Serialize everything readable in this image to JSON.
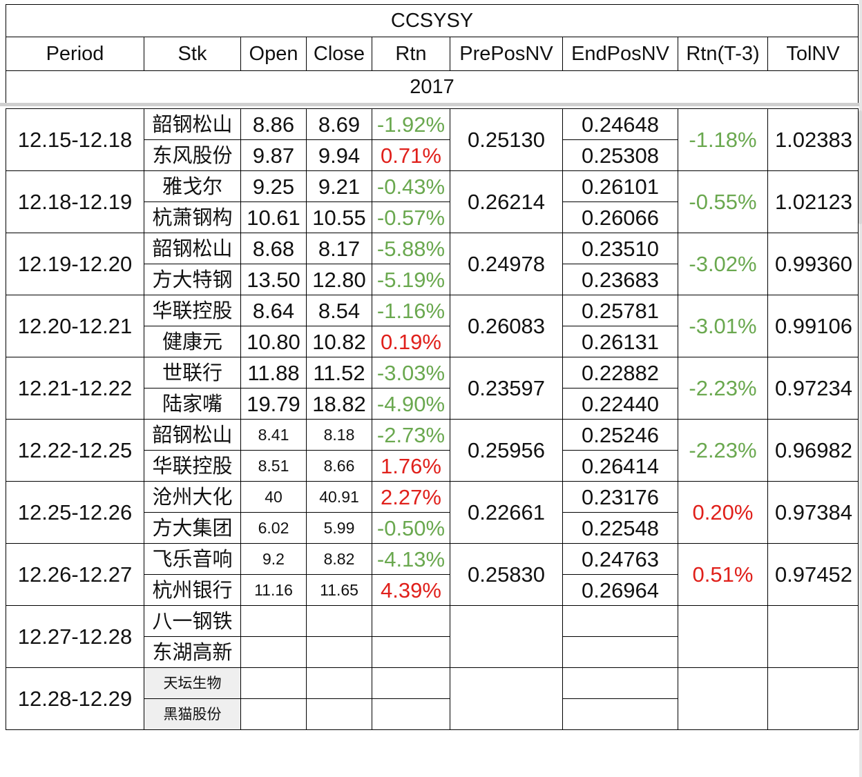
{
  "title": "CCSYSY",
  "headers": [
    "Period",
    "Stk",
    "Open",
    "Close",
    "Rtn",
    "PrePosNV",
    "EndPosNV",
    "Rtn(T-3)",
    "TolNV"
  ],
  "year": "2017",
  "periods": [
    {
      "period": "12.15-12.18",
      "prepos": "0.25130",
      "rtn3": "-1.18%",
      "rtn3_color": "green",
      "tol": "1.02383",
      "rows": [
        {
          "stk": "韶钢松山",
          "open": "8.86",
          "close": "8.69",
          "rtn": "-1.92%",
          "rtn_color": "green",
          "endpos": "0.24648"
        },
        {
          "stk": "东风股份",
          "open": "9.87",
          "close": "9.94",
          "rtn": "0.71%",
          "rtn_color": "red",
          "endpos": "0.25308"
        }
      ]
    },
    {
      "period": "12.18-12.19",
      "prepos": "0.26214",
      "rtn3": "-0.55%",
      "rtn3_color": "green",
      "tol": "1.02123",
      "rows": [
        {
          "stk": "雅戈尔",
          "open": "9.25",
          "close": "9.21",
          "rtn": "-0.43%",
          "rtn_color": "green",
          "endpos": "0.26101"
        },
        {
          "stk": "杭萧钢构",
          "open": "10.61",
          "close": "10.55",
          "rtn": "-0.57%",
          "rtn_color": "green",
          "endpos": "0.26066"
        }
      ]
    },
    {
      "period": "12.19-12.20",
      "prepos": "0.24978",
      "rtn3": "-3.02%",
      "rtn3_color": "green",
      "tol": "0.99360",
      "rows": [
        {
          "stk": "韶钢松山",
          "open": "8.68",
          "close": "8.17",
          "rtn": "-5.88%",
          "rtn_color": "green",
          "endpos": "0.23510"
        },
        {
          "stk": "方大特钢",
          "open": "13.50",
          "close": "12.80",
          "rtn": "-5.19%",
          "rtn_color": "green",
          "endpos": "0.23683"
        }
      ]
    },
    {
      "period": "12.20-12.21",
      "prepos": "0.26083",
      "rtn3": "-3.01%",
      "rtn3_color": "green",
      "tol": "0.99106",
      "rows": [
        {
          "stk": "华联控股",
          "open": "8.64",
          "close": "8.54",
          "rtn": "-1.16%",
          "rtn_color": "green",
          "endpos": "0.25781"
        },
        {
          "stk": "健康元",
          "open": "10.80",
          "close": "10.82",
          "rtn": "0.19%",
          "rtn_color": "red",
          "endpos": "0.26131"
        }
      ]
    },
    {
      "period": "12.21-12.22",
      "prepos": "0.23597",
      "rtn3": "-2.23%",
      "rtn3_color": "green",
      "tol": "0.97234",
      "rows": [
        {
          "stk": "世联行",
          "open": "11.88",
          "close": "11.52",
          "rtn": "-3.03%",
          "rtn_color": "green",
          "endpos": "0.22882"
        },
        {
          "stk": "陆家嘴",
          "open": "19.79",
          "close": "18.82",
          "rtn": "-4.90%",
          "rtn_color": "green",
          "endpos": "0.22440"
        }
      ]
    },
    {
      "period": "12.22-12.25",
      "prepos": "0.25956",
      "rtn3": "-2.23%",
      "rtn3_color": "green",
      "tol": "0.96982",
      "rows": [
        {
          "stk": "韶钢松山",
          "open": "8.41",
          "close": "8.18",
          "rtn": "-2.73%",
          "rtn_color": "green",
          "endpos": "0.25246"
        },
        {
          "stk": "华联控股",
          "open": "8.51",
          "close": "8.66",
          "rtn": "1.76%",
          "rtn_color": "red",
          "endpos": "0.26414"
        }
      ]
    },
    {
      "period": "12.25-12.26",
      "prepos": "0.22661",
      "rtn3": "0.20%",
      "rtn3_color": "red",
      "tol": "0.97384",
      "rows": [
        {
          "stk": "沧州大化",
          "open": "40",
          "close": "40.91",
          "rtn": "2.27%",
          "rtn_color": "red",
          "endpos": "0.23176"
        },
        {
          "stk": "方大集团",
          "open": "6.02",
          "close": "5.99",
          "rtn": "-0.50%",
          "rtn_color": "green",
          "endpos": "0.22548"
        }
      ]
    },
    {
      "period": "12.26-12.27",
      "prepos": "0.25830",
      "rtn3": "0.51%",
      "rtn3_color": "red",
      "tol": "0.97452",
      "rows": [
        {
          "stk": "飞乐音响",
          "open": "9.2",
          "close": "8.82",
          "rtn": "-4.13%",
          "rtn_color": "green",
          "endpos": "0.24763"
        },
        {
          "stk": "杭州银行",
          "open": "11.16",
          "close": "11.65",
          "rtn": "4.39%",
          "rtn_color": "red",
          "endpos": "0.26964"
        }
      ]
    },
    {
      "period": "12.27-12.28",
      "prepos": "",
      "rtn3": "",
      "rtn3_color": "",
      "tol": "",
      "rows": [
        {
          "stk": "八一钢铁",
          "open": "",
          "close": "",
          "rtn": "",
          "rtn_color": "",
          "endpos": ""
        },
        {
          "stk": "东湖高新",
          "open": "",
          "close": "",
          "rtn": "",
          "rtn_color": "",
          "endpos": ""
        }
      ]
    },
    {
      "period": "12.28-12.29",
      "prepos": "",
      "rtn3": "",
      "rtn3_color": "",
      "tol": "",
      "rows": [
        {
          "stk": "天坛生物",
          "open": "",
          "close": "",
          "rtn": "",
          "rtn_color": "",
          "endpos": ""
        },
        {
          "stk": "黑猫股份",
          "open": "",
          "close": "",
          "rtn": "",
          "rtn_color": "",
          "endpos": ""
        }
      ]
    }
  ]
}
